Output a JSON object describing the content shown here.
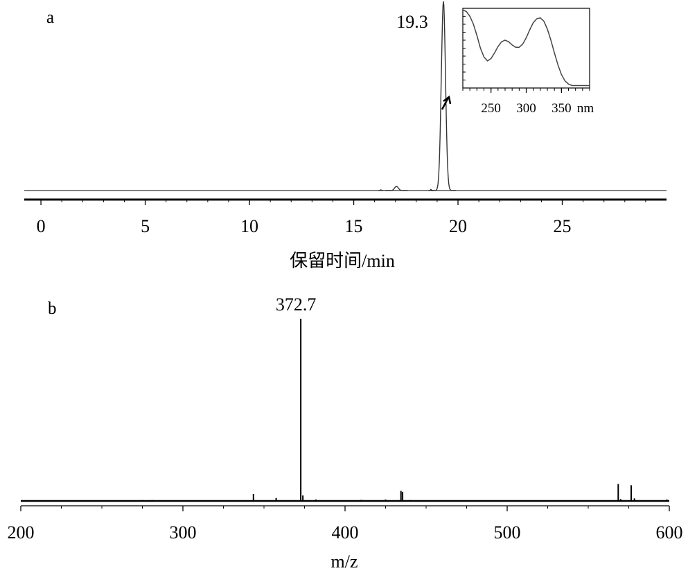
{
  "chart_data": [
    {
      "panel": "a",
      "type": "line",
      "xlabel": "保留时间/min",
      "ylabel": "",
      "xlim": [
        -0.8,
        30
      ],
      "ylim": [
        0,
        100
      ],
      "x_ticks": [
        "0",
        "5",
        "10",
        "15",
        "20",
        "25"
      ],
      "x_tick_values": [
        0,
        5,
        10,
        15,
        20,
        25
      ],
      "peaks": [
        {
          "x": 16.3,
          "height": 0.4,
          "width": 0.04
        },
        {
          "x": 17.05,
          "height": 2.2,
          "width": 0.18
        },
        {
          "x": 18.7,
          "height": 0.6,
          "width": 0.04
        },
        {
          "x": 19.3,
          "height": 100,
          "width": 0.2
        }
      ],
      "annotation": {
        "label": "19.3",
        "x": 19.3
      },
      "inset": {
        "type": "line",
        "xlabel": "nm",
        "x_ticks": [
          "250",
          "300",
          "350"
        ],
        "x_tick_values": [
          250,
          300,
          350
        ],
        "xlim": [
          210,
          390
        ],
        "ylim": [
          0,
          1
        ],
        "x": [
          210,
          215,
          220,
          225,
          230,
          235,
          240,
          245,
          250,
          255,
          260,
          265,
          270,
          275,
          280,
          285,
          290,
          295,
          300,
          305,
          310,
          315,
          320,
          325,
          330,
          335,
          340,
          345,
          350,
          355,
          360,
          365,
          370,
          380,
          390
        ],
        "y": [
          0.98,
          0.96,
          0.9,
          0.8,
          0.66,
          0.5,
          0.39,
          0.34,
          0.37,
          0.44,
          0.52,
          0.58,
          0.6,
          0.58,
          0.54,
          0.51,
          0.51,
          0.55,
          0.63,
          0.73,
          0.82,
          0.87,
          0.88,
          0.84,
          0.74,
          0.6,
          0.44,
          0.29,
          0.17,
          0.09,
          0.05,
          0.03,
          0.03,
          0.03,
          0.03
        ]
      }
    },
    {
      "panel": "b",
      "type": "bar",
      "xlabel": "m/z",
      "ylabel": "",
      "xlim": [
        200,
        600
      ],
      "ylim": [
        0,
        100
      ],
      "x_ticks": [
        "200",
        "300",
        "400",
        "500",
        "600"
      ],
      "x_tick_values": [
        200,
        300,
        400,
        500,
        600
      ],
      "x": [
        275.0,
        281.0,
        343.5,
        357.5,
        372.7,
        374.0,
        382.0,
        410.0,
        425.0,
        434.5,
        435.5,
        440.0,
        540.0,
        568.5,
        570.0,
        576.5,
        578.5,
        598.5
      ],
      "values": [
        0.5,
        0.5,
        3.8,
        1.6,
        100,
        3.0,
        0.8,
        0.6,
        0.8,
        5.5,
        5.0,
        0.5,
        0.4,
        9.3,
        1.0,
        8.6,
        1.4,
        0.8
      ],
      "annotation": {
        "label": "372.7",
        "x": 372.7
      }
    }
  ]
}
